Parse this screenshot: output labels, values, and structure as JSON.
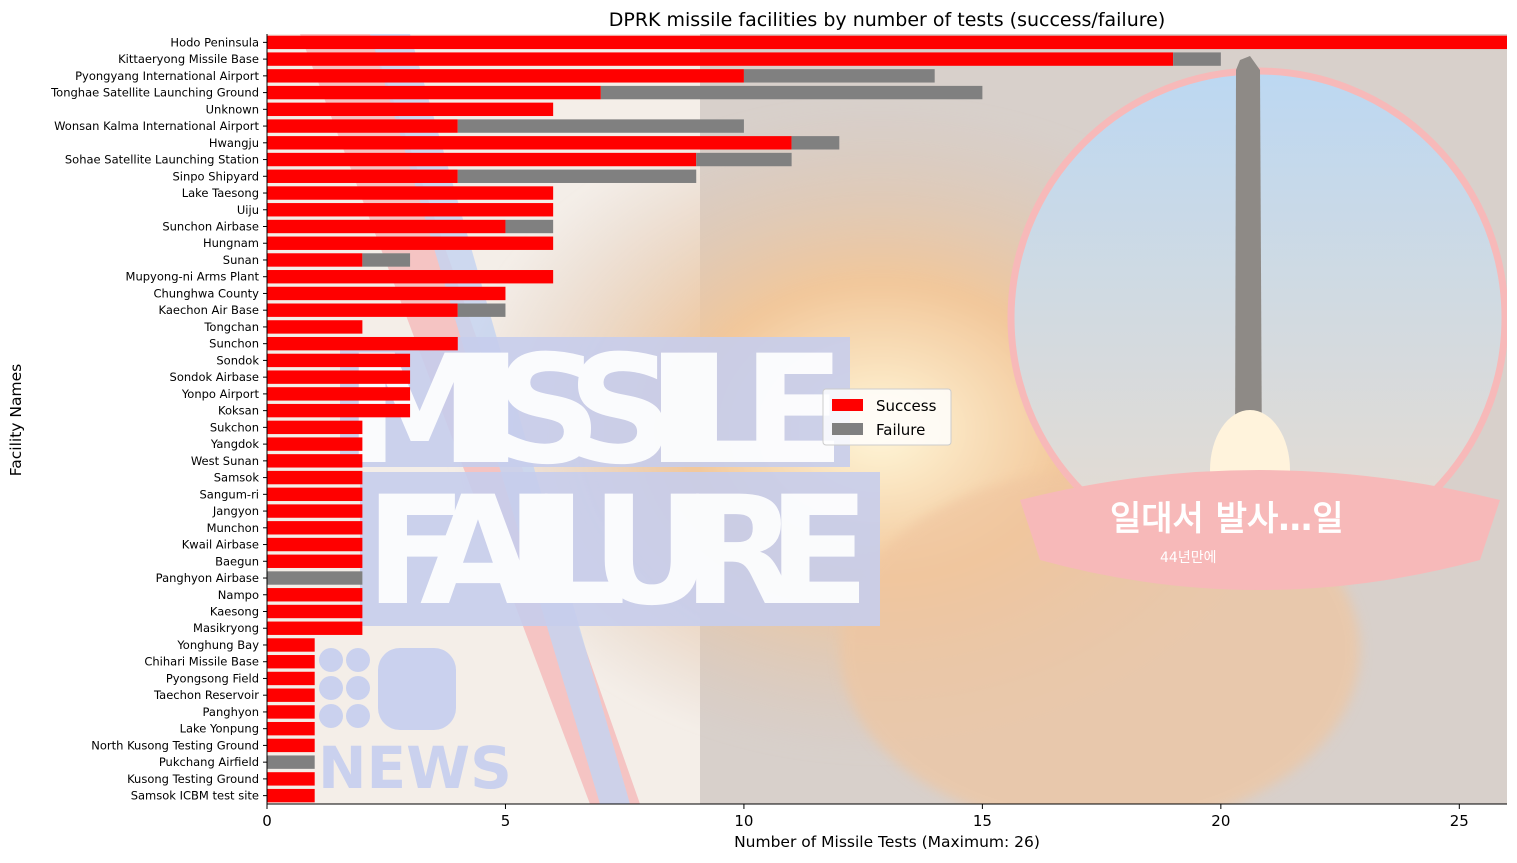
{
  "chart_data": {
    "type": "bar",
    "orientation": "horizontal",
    "stacked": true,
    "title": "DPRK missile facilities by number of tests (success/failure)",
    "xlabel": "Number of Missile Tests (Maximum: 26)",
    "ylabel": "Facility Names",
    "xlim": [
      0,
      26
    ],
    "x_ticks": [
      0,
      5,
      10,
      15,
      20,
      25
    ],
    "grid": false,
    "legend_position": "center-right",
    "background_image": "blurred news graphic of a missile launch with 9 News logo",
    "background_image_text": [
      "MISSILE",
      "FAILURE",
      "NEWS",
      "일대서 발사…일",
      "44년만에"
    ],
    "categories": [
      "Hodo Peninsula",
      "Kittaeryong Missile Base",
      "Pyongyang International Airport",
      "Tonghae Satellite Launching Ground",
      "Unknown",
      "Wonsan Kalma International Airport",
      "Hwangju",
      "Sohae Satellite Launching Station",
      "Sinpo Shipyard",
      "Lake Taesong",
      "Uiju",
      "Sunchon Airbase",
      "Hungnam",
      "Sunan",
      "Mupyong-ni Arms Plant",
      "Chunghwa County",
      "Kaechon Air Base",
      "Tongchan",
      "Sunchon",
      "Sondok",
      "Sondok Airbase",
      "Yonpo Airport",
      "Koksan",
      "Sukchon",
      "Yangdok",
      "West Sunan",
      "Samsok",
      "Sangum-ri",
      "Jangyon",
      "Munchon",
      "Kwail Airbase",
      "Baegun",
      "Panghyon Airbase",
      "Nampo",
      "Kaesong",
      "Masikryong",
      "Yonghung Bay",
      "Chihari Missile Base",
      "Pyongsong Field",
      "Taechon Reservoir",
      "Panghyon",
      "Lake Yonpung",
      "North Kusong Testing Ground",
      "Pukchang Airfield",
      "Kusong Testing Ground",
      "Samsok ICBM test site"
    ],
    "series": [
      {
        "name": "Success",
        "color": "#ff0000",
        "values": [
          26,
          19,
          10,
          7,
          6,
          4,
          11,
          9,
          4,
          6,
          6,
          5,
          6,
          2,
          6,
          5,
          4,
          2,
          4,
          3,
          3,
          3,
          3,
          2,
          2,
          2,
          2,
          2,
          2,
          2,
          2,
          2,
          0,
          2,
          2,
          2,
          1,
          1,
          1,
          1,
          1,
          1,
          1,
          0,
          1,
          1
        ]
      },
      {
        "name": "Failure",
        "color": "#808080",
        "values": [
          0,
          1,
          4,
          8,
          0,
          6,
          1,
          2,
          5,
          0,
          0,
          1,
          0,
          1,
          0,
          0,
          1,
          0,
          0,
          0,
          0,
          0,
          0,
          0,
          0,
          0,
          0,
          0,
          0,
          0,
          0,
          0,
          2,
          0,
          0,
          0,
          0,
          0,
          0,
          0,
          0,
          0,
          0,
          1,
          0,
          0
        ]
      }
    ]
  }
}
